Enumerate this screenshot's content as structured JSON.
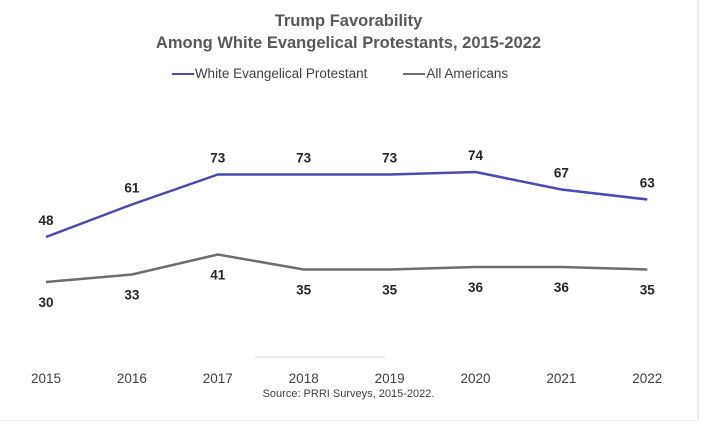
{
  "chart_data": {
    "type": "line",
    "title": "Trump Favorability",
    "subtitle": "Among White Evangelical Protestants, 2015-2022",
    "xlabel": "",
    "ylabel": "",
    "x": [
      "2015",
      "2016",
      "2017",
      "2018",
      "2019",
      "2020",
      "2021",
      "2022"
    ],
    "ylim": [
      0,
      80
    ],
    "grid": false,
    "legend_position": "top-center",
    "series": [
      {
        "name": "White Evangelical Protestant",
        "color": "#4b4bb0",
        "values": [
          48,
          61,
          73,
          73,
          73,
          74,
          67,
          63
        ],
        "label_position": "above"
      },
      {
        "name": "All Americans",
        "color": "#6e6e6e",
        "values": [
          30,
          33,
          41,
          35,
          35,
          36,
          36,
          35
        ],
        "label_position": "below"
      }
    ],
    "source": "Source: PRRI Surveys, 2015-2022."
  }
}
